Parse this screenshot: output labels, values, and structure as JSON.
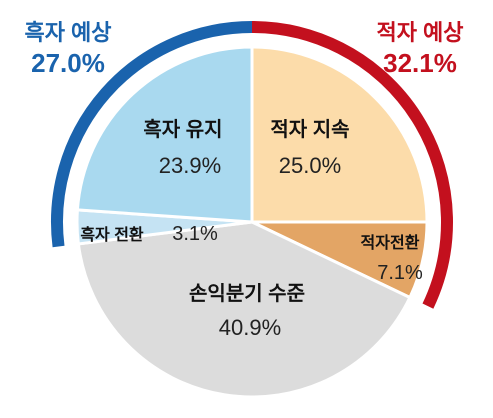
{
  "chart_data": {
    "type": "pie",
    "slices": [
      {
        "label": "적자 지속",
        "value": 25.0,
        "value_text": "25.0%",
        "color": "#fcdcaa"
      },
      {
        "label": "적자전환",
        "value": 7.1,
        "value_text": "7.1%",
        "color": "#e3a565"
      },
      {
        "label": "손익분기 수준",
        "value": 40.9,
        "value_text": "40.9%",
        "color": "#dcdcdc"
      },
      {
        "label": "흑자 전환",
        "value": 3.1,
        "value_text": "3.1%",
        "color": "#c5e3f3"
      },
      {
        "label": "흑자 유지",
        "value": 23.9,
        "value_text": "23.9%",
        "color": "#a9d9ef"
      }
    ],
    "groups": [
      {
        "label": "흑자 예상",
        "value": 27.0,
        "value_text": "27.0%",
        "color": "#1a63ad"
      },
      {
        "label": "적자 예상",
        "value": 32.1,
        "value_text": "32.1%",
        "color": "#c3101e"
      }
    ]
  }
}
